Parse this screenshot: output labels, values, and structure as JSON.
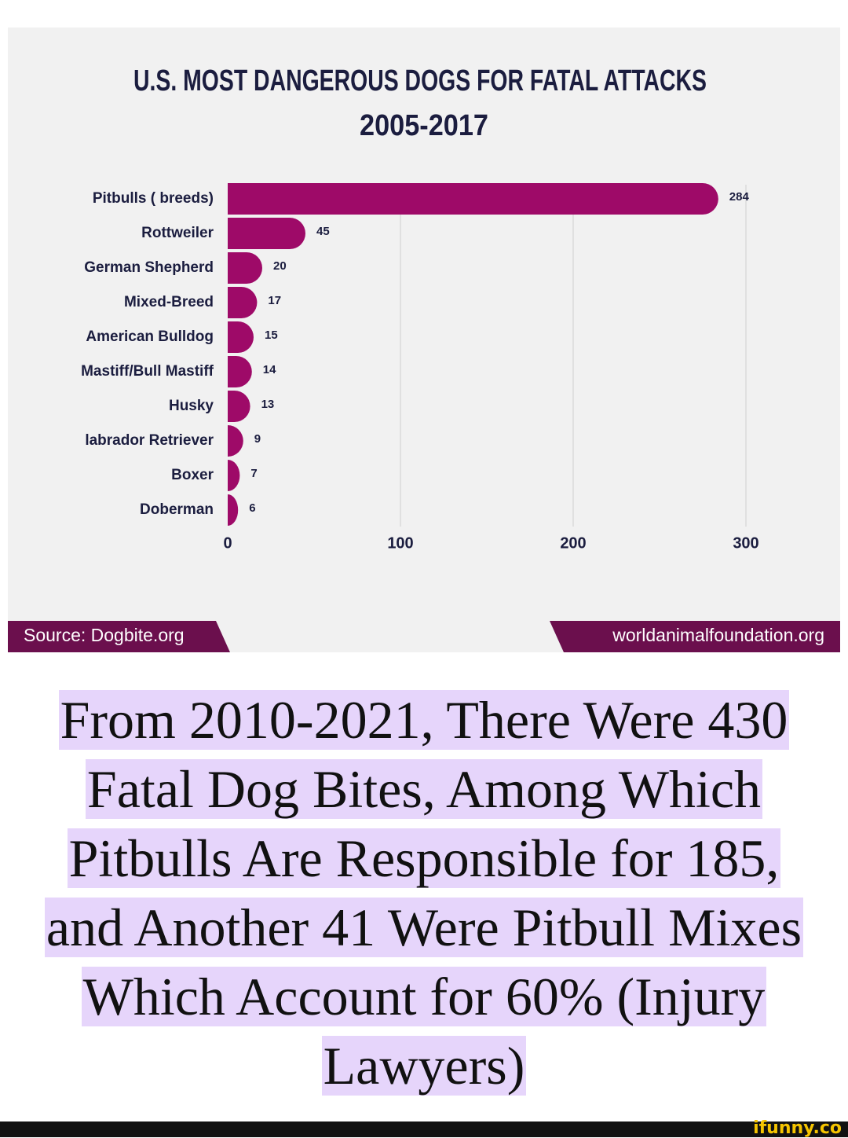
{
  "chart_data": {
    "type": "bar",
    "orientation": "horizontal",
    "title": "U.S. MOST DANGEROUS DOGS FOR FATAL ATTACKS",
    "subtitle": "2005-2017",
    "categories": [
      "Pitbulls ( breeds)",
      "Rottweiler",
      "German Shepherd",
      "Mixed-Breed",
      "American Bulldog",
      "Mastiff/Bull Mastiff",
      "Husky",
      "labrador Retriever",
      "Boxer",
      "Doberman"
    ],
    "values": [
      284,
      45,
      20,
      17,
      15,
      14,
      13,
      9,
      7,
      6
    ],
    "color": "#9e0a68",
    "xlim": [
      0,
      300
    ],
    "xticks": [
      0,
      100,
      200,
      300
    ],
    "grid": true,
    "source": "Source: Dogbite.org",
    "website": "worldanimalfoundation.org"
  },
  "caption": {
    "lines": [
      "From 2010-2021, There Were 430",
      "Fatal Dog Bites, Among Which",
      "Pitbulls Are Responsible for 185,",
      "and Another 41 Were Pitbull Mixes",
      "Which Account for 60% (Injury",
      "Lawyers)"
    ]
  },
  "footer": {
    "logo": "ifunny.co"
  }
}
